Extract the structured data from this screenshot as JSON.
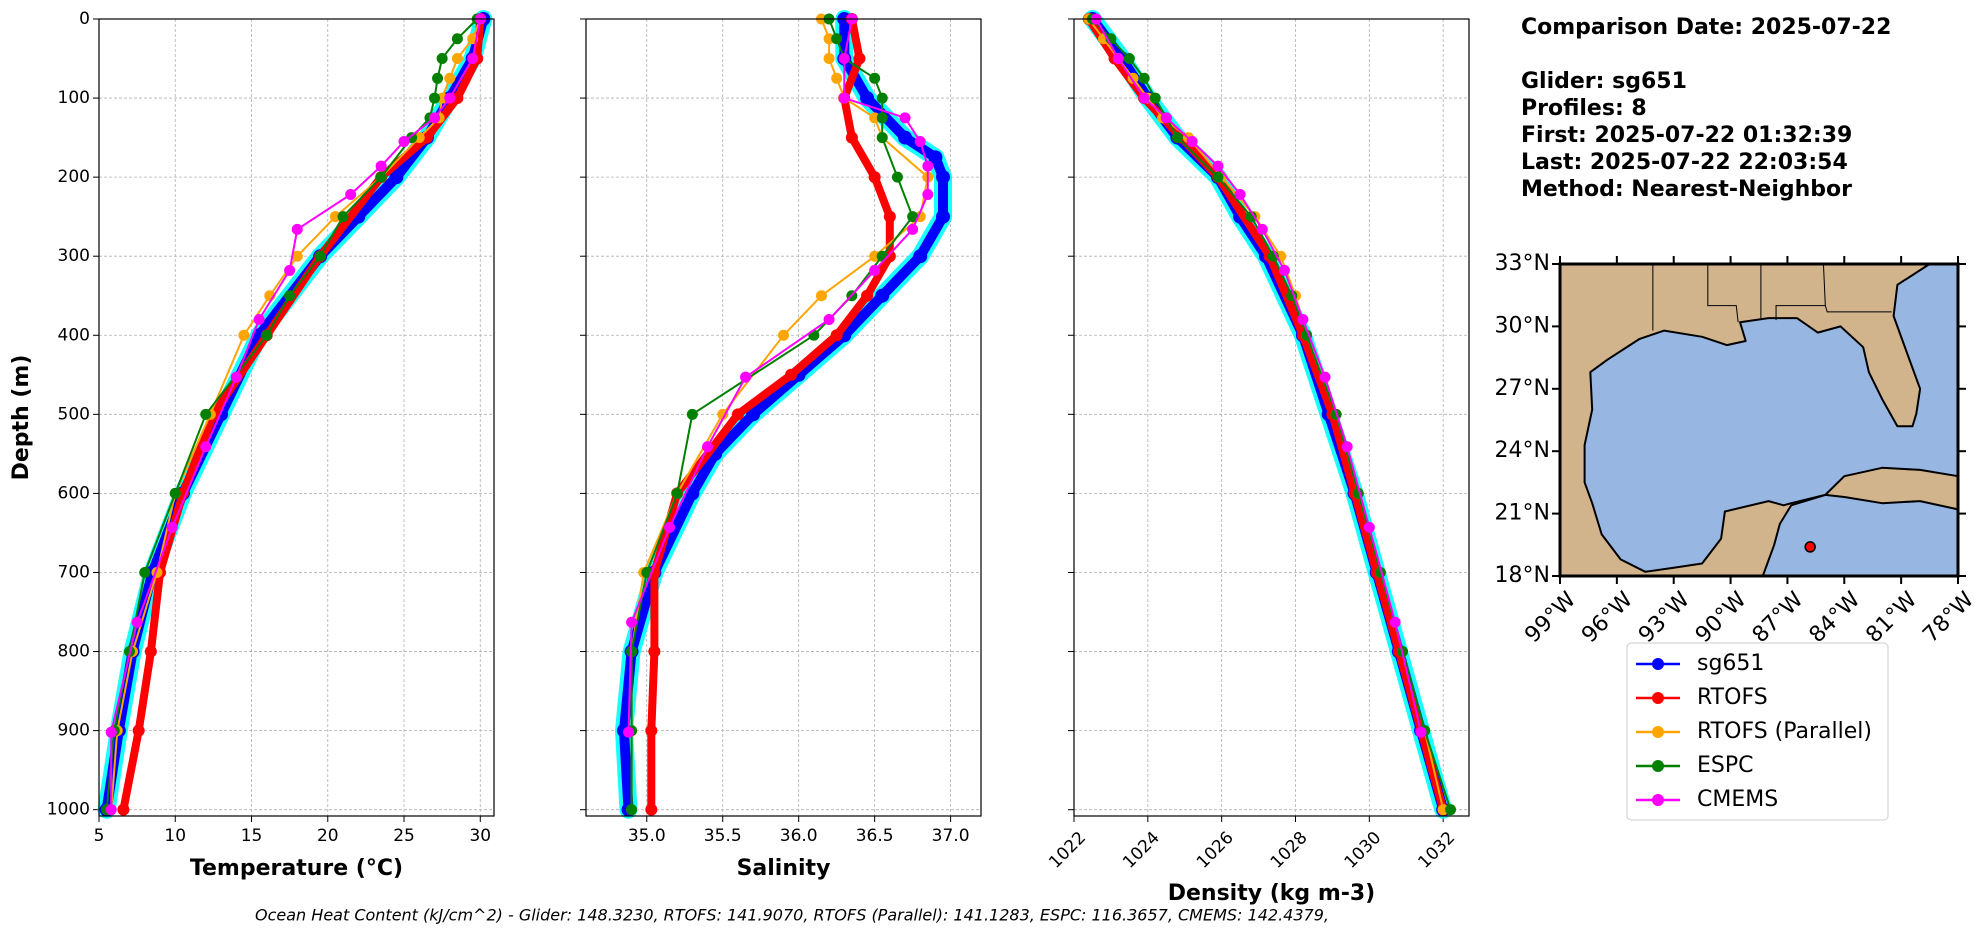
{
  "chart_data": [
    {
      "type": "line",
      "xlabel": "Temperature (°C)",
      "ylabel": "Depth (m)",
      "xlim": [
        5,
        30.9
      ],
      "xticks": [
        5,
        10,
        15,
        20,
        25,
        30
      ],
      "ylim": [
        0,
        1008
      ],
      "yticks": [
        0,
        100,
        200,
        300,
        400,
        500,
        600,
        700,
        800,
        900,
        1000
      ],
      "invert_y": true,
      "ytick_labels": true,
      "grid": true,
      "series": [
        {
          "name": "sg651",
          "color": "#0000ff",
          "depth": [
            0,
            50,
            100,
            150,
            200,
            250,
            300,
            400,
            500,
            600,
            700,
            800,
            900,
            1000
          ],
          "values": [
            30.2,
            29.5,
            28,
            26.5,
            24.5,
            22,
            19.5,
            15.5,
            13,
            10.5,
            8.5,
            7.2,
            6.3,
            5.5
          ]
        },
        {
          "name": "RTOFS",
          "color": "#ff0000",
          "depth": [
            0,
            50,
            100,
            150,
            200,
            300,
            400,
            500,
            600,
            700,
            800,
            900,
            1000
          ],
          "values": [
            30,
            29.8,
            28.5,
            26.5,
            23.5,
            19.5,
            16,
            12.5,
            10.5,
            9,
            8.4,
            7.6,
            6.6
          ]
        },
        {
          "name": "RTOFS (Parallel)",
          "color": "#ffa500",
          "depth": [
            0,
            25,
            50,
            75,
            100,
            125,
            150,
            200,
            250,
            300,
            350,
            400,
            500,
            600,
            700,
            800,
            900,
            1000
          ],
          "values": [
            30,
            29.5,
            28.5,
            28,
            27.5,
            27.3,
            26,
            23.5,
            20.5,
            18,
            16.2,
            14.5,
            12.3,
            10,
            8.8,
            7.2,
            6.2,
            5.8
          ]
        },
        {
          "name": "ESPC",
          "color": "#008000",
          "depth": [
            0,
            25,
            50,
            75,
            100,
            125,
            150,
            200,
            250,
            300,
            350,
            400,
            500,
            600,
            700,
            800,
            900,
            1000
          ],
          "values": [
            29.8,
            28.5,
            27.5,
            27.2,
            27,
            26.7,
            25.5,
            23.5,
            21,
            19.5,
            17.5,
            16,
            12,
            10,
            8,
            7,
            6,
            5.5
          ]
        },
        {
          "name": "CMEMS",
          "color": "#ff00ff",
          "depth": [
            0,
            50,
            100,
            125,
            155,
            186,
            222,
            266,
            318,
            380,
            453,
            541,
            643,
            763,
            902,
            1000
          ],
          "values": [
            30,
            29.5,
            28,
            27,
            25,
            23.5,
            21.5,
            18,
            17.5,
            15.5,
            14,
            12,
            9.8,
            7.5,
            5.8,
            5.8
          ]
        }
      ]
    },
    {
      "type": "line",
      "xlabel": "Salinity",
      "xlim": [
        34.6,
        37.2
      ],
      "xticks": [
        {
          "value": 35,
          "label": "35.0"
        },
        35.5,
        {
          "value": 36,
          "label": "36.0"
        },
        36.5,
        {
          "value": 37,
          "label": "37.0"
        }
      ],
      "ylim": [
        0,
        1008
      ],
      "yticks": [
        0,
        100,
        200,
        300,
        400,
        500,
        600,
        700,
        800,
        900,
        1000
      ],
      "invert_y": true,
      "ytick_labels": false,
      "grid": true,
      "series": [
        {
          "name": "sg651",
          "color": "#0000ff",
          "depth": [
            0,
            50,
            100,
            150,
            175,
            200,
            250,
            300,
            350,
            400,
            450,
            500,
            550,
            600,
            700,
            800,
            900,
            1000
          ],
          "values": [
            36.3,
            36.3,
            36.45,
            36.7,
            36.9,
            36.95,
            36.95,
            36.8,
            36.55,
            36.3,
            36,
            35.7,
            35.45,
            35.3,
            35.05,
            34.9,
            34.85,
            34.88
          ]
        },
        {
          "name": "RTOFS",
          "color": "#ff0000",
          "depth": [
            0,
            50,
            100,
            150,
            200,
            250,
            300,
            350,
            400,
            450,
            500,
            600,
            700,
            800,
            900,
            1000
          ],
          "values": [
            36.35,
            36.4,
            36.3,
            36.35,
            36.5,
            36.6,
            36.6,
            36.45,
            36.25,
            35.95,
            35.6,
            35.2,
            35.05,
            35.05,
            35.03,
            35.03
          ]
        },
        {
          "name": "RTOFS (Parallel)",
          "color": "#ffa500",
          "depth": [
            0,
            25,
            50,
            75,
            100,
            125,
            150,
            200,
            250,
            300,
            350,
            400,
            500,
            600,
            700,
            800,
            900,
            1000
          ],
          "values": [
            36.15,
            36.2,
            36.2,
            36.25,
            36.3,
            36.5,
            36.55,
            36.85,
            36.8,
            36.5,
            36.15,
            35.9,
            35.5,
            35.2,
            34.98,
            34.9,
            34.9,
            34.9
          ]
        },
        {
          "name": "ESPC",
          "color": "#008000",
          "depth": [
            0,
            25,
            50,
            75,
            100,
            125,
            150,
            200,
            250,
            300,
            350,
            400,
            500,
            600,
            700,
            800,
            900,
            1000
          ],
          "values": [
            36.2,
            36.25,
            36.3,
            36.5,
            36.55,
            36.55,
            36.55,
            36.65,
            36.75,
            36.55,
            36.35,
            36.1,
            35.3,
            35.2,
            35,
            34.9,
            34.9,
            34.9
          ]
        },
        {
          "name": "CMEMS",
          "color": "#ff00ff",
          "depth": [
            0,
            50,
            100,
            125,
            155,
            186,
            222,
            266,
            318,
            380,
            453,
            541,
            643,
            763,
            902
          ],
          "values": [
            36.35,
            36.3,
            36.3,
            36.7,
            36.8,
            36.85,
            36.85,
            36.75,
            36.5,
            36.2,
            35.65,
            35.4,
            35.15,
            34.9,
            34.88
          ]
        }
      ]
    },
    {
      "type": "line",
      "xlabel": "Density (kg m-3)",
      "xlim": [
        1022,
        1032.7
      ],
      "xticks": [
        1022,
        1024,
        1026,
        1028,
        1030,
        1032
      ],
      "ylim": [
        0,
        1008
      ],
      "yticks": [
        0,
        100,
        200,
        300,
        400,
        500,
        600,
        700,
        800,
        900,
        1000
      ],
      "invert_y": true,
      "ytick_labels": false,
      "grid": true,
      "series": [
        {
          "name": "sg651",
          "color": "#0000ff",
          "depth": [
            0,
            50,
            100,
            150,
            200,
            250,
            300,
            400,
            500,
            600,
            700,
            800,
            900,
            1000
          ],
          "values": [
            1022.5,
            1023.3,
            1024,
            1024.8,
            1025.9,
            1026.5,
            1027.2,
            1028.2,
            1028.9,
            1029.6,
            1030.2,
            1030.8,
            1031.4,
            1032
          ]
        },
        {
          "name": "RTOFS",
          "color": "#ff0000",
          "depth": [
            0,
            50,
            100,
            150,
            200,
            300,
            400,
            500,
            600,
            700,
            800,
            900,
            1000
          ],
          "values": [
            1022.4,
            1023.1,
            1023.9,
            1024.9,
            1025.9,
            1027.3,
            1028.2,
            1029,
            1029.6,
            1030.2,
            1030.8,
            1031.4,
            1032
          ]
        },
        {
          "name": "RTOFS (Parallel)",
          "color": "#ffa500",
          "depth": [
            0,
            25,
            50,
            75,
            100,
            125,
            150,
            200,
            250,
            300,
            350,
            400,
            500,
            600,
            700,
            800,
            900,
            1000
          ],
          "values": [
            1022.4,
            1022.8,
            1023.2,
            1023.6,
            1024,
            1024.4,
            1025.1,
            1026,
            1026.9,
            1027.6,
            1028,
            1028.3,
            1029.1,
            1029.7,
            1030.3,
            1030.9,
            1031.5,
            1032
          ]
        },
        {
          "name": "ESPC",
          "color": "#008000",
          "depth": [
            0,
            25,
            50,
            75,
            100,
            125,
            150,
            200,
            250,
            300,
            350,
            400,
            500,
            600,
            700,
            800,
            900,
            1000
          ],
          "values": [
            1022.5,
            1023,
            1023.5,
            1023.9,
            1024.2,
            1024.5,
            1024.8,
            1025.9,
            1026.8,
            1027.4,
            1027.9,
            1028.3,
            1029.1,
            1029.7,
            1030.3,
            1030.9,
            1031.5,
            1032.2
          ]
        },
        {
          "name": "CMEMS",
          "color": "#ff00ff",
          "depth": [
            0,
            50,
            100,
            125,
            155,
            186,
            222,
            266,
            318,
            380,
            453,
            541,
            643,
            763,
            902
          ],
          "values": [
            1022.6,
            1023.2,
            1023.9,
            1024.5,
            1025.2,
            1025.9,
            1026.5,
            1027.1,
            1027.7,
            1028.2,
            1028.8,
            1029.4,
            1030,
            1030.7,
            1031.4
          ]
        }
      ]
    }
  ],
  "map": {
    "xlim": [
      -99,
      -78
    ],
    "ylim": [
      18,
      33
    ],
    "xticks": [
      {
        "value": -99,
        "label": "99°W"
      },
      {
        "value": -96,
        "label": "96°W"
      },
      {
        "value": -93,
        "label": "93°W"
      },
      {
        "value": -90,
        "label": "90°W"
      },
      {
        "value": -87,
        "label": "87°W"
      },
      {
        "value": -84,
        "label": "84°W"
      },
      {
        "value": -81,
        "label": "81°W"
      },
      {
        "value": -78,
        "label": "78°W"
      }
    ],
    "yticks": [
      {
        "value": 18,
        "label": "18°N"
      },
      {
        "value": 21,
        "label": "21°N"
      },
      {
        "value": 24,
        "label": "24°N"
      },
      {
        "value": 27,
        "label": "27°N"
      },
      {
        "value": 30,
        "label": "30°N"
      },
      {
        "value": 33,
        "label": "33°N"
      }
    ],
    "glider_position": {
      "lon": -85.8,
      "lat": 19.4
    }
  },
  "info": [
    "Comparison Date: 2025-07-22",
    "Glider: sg651",
    "Profiles: 8",
    "First: 2025-07-22 01:32:39",
    "Last: 2025-07-22 22:03:54",
    "Method: Nearest-Neighbor"
  ],
  "footnote": "Ocean Heat Content (kJ/cm^2) - Glider: 148.3230,  RTOFS: 141.9070,  RTOFS (Parallel): 141.1283,  ESPC: 116.3657,  CMEMS: 142.4379,"
}
